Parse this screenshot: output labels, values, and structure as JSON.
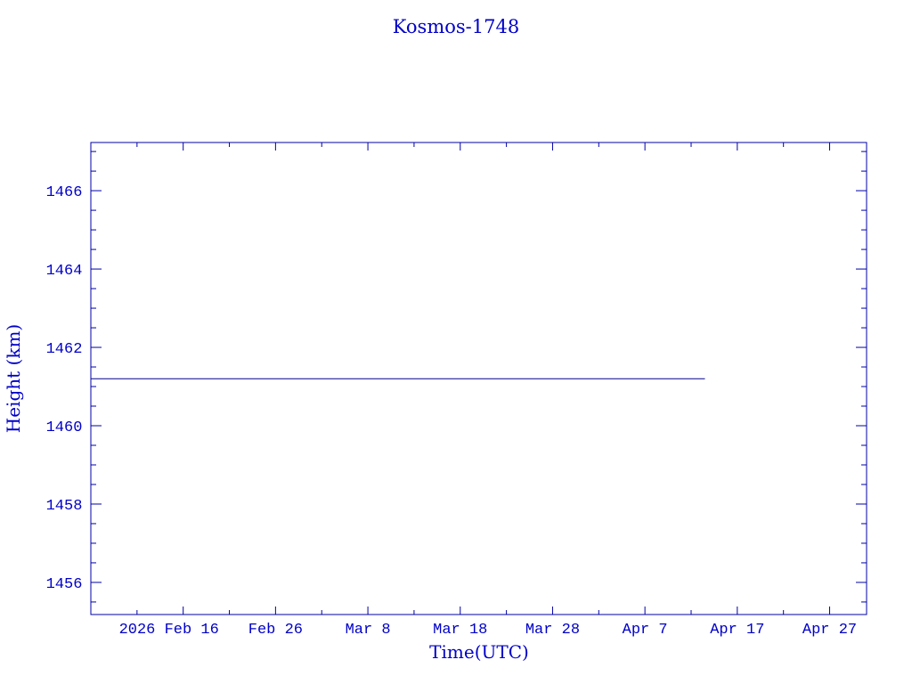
{
  "chart_data": {
    "type": "line",
    "title": "Kosmos-1748",
    "xlabel": "Time(UTC)",
    "ylabel": "Height (km)",
    "xlim": [
      "2026-02-06",
      "2026-05-01"
    ],
    "ylim": [
      1455.18,
      1467.23
    ],
    "x_ticks": [
      {
        "date": "2026-02-16",
        "label": "2026 Feb 16"
      },
      {
        "date": "2026-02-26",
        "label": "Feb 26"
      },
      {
        "date": "2026-03-08",
        "label": "Mar  8"
      },
      {
        "date": "2026-03-18",
        "label": "Mar 18"
      },
      {
        "date": "2026-03-28",
        "label": "Mar 28"
      },
      {
        "date": "2026-04-07",
        "label": "Apr  7"
      },
      {
        "date": "2026-04-17",
        "label": "Apr 17"
      },
      {
        "date": "2026-04-27",
        "label": "Apr 27"
      }
    ],
    "y_ticks": [
      "1456",
      "1458",
      "1460",
      "1462",
      "1464",
      "1466"
    ],
    "grid": false,
    "series": [
      {
        "x": [
          "2026-02-06",
          "2026-04-13T12:00"
        ],
        "y": [
          1461.2,
          1461.2
        ],
        "color": "#00008b"
      }
    ],
    "colors": {
      "text": "#0000c8",
      "axes": "#0000a8",
      "line": "#00008b"
    }
  }
}
